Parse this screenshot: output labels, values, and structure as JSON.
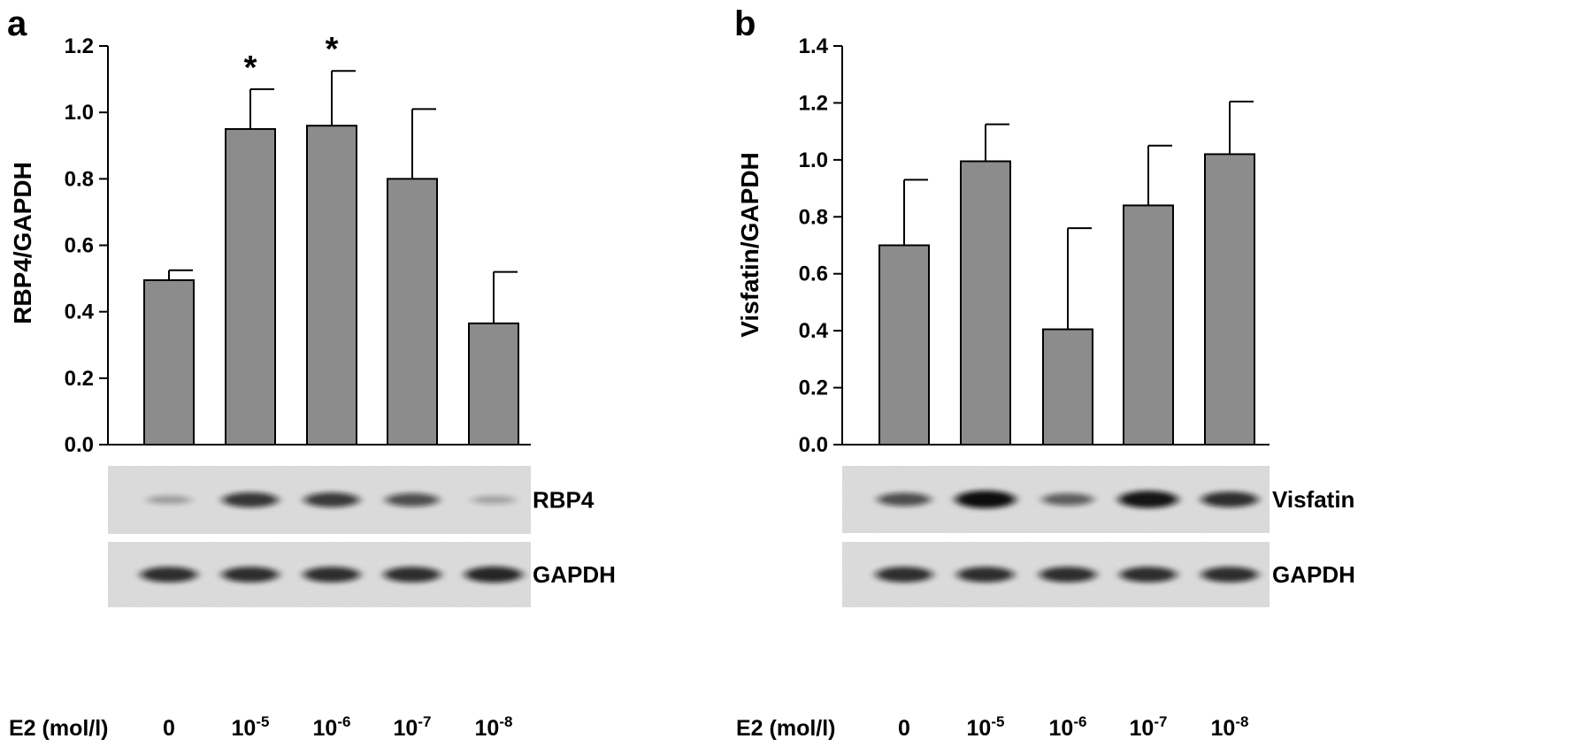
{
  "chart_data": [
    {
      "type": "bar",
      "panel": "a",
      "ylabel": "RBP4/GAPDH",
      "ylim": [
        0,
        1.2
      ],
      "yticks": [
        "0.0",
        "0.2",
        "0.4",
        "0.6",
        "0.8",
        "1.0",
        "1.2"
      ],
      "categories": [
        "0",
        "10-5",
        "10-6",
        "10-7",
        "10-8"
      ],
      "values": [
        0.495,
        0.95,
        0.96,
        0.8,
        0.365
      ],
      "errors": [
        0.03,
        0.12,
        0.165,
        0.21,
        0.155
      ],
      "significance": [
        "",
        "*",
        "*",
        "",
        ""
      ],
      "bar_color": "#8c8c8c",
      "grid": false,
      "blots": [
        {
          "label": "RBP4",
          "intensities": [
            0.12,
            0.75,
            0.72,
            0.6,
            0.1
          ]
        },
        {
          "label": "GAPDH",
          "intensities": [
            0.8,
            0.8,
            0.8,
            0.8,
            0.85
          ]
        }
      ]
    },
    {
      "type": "bar",
      "panel": "b",
      "ylabel": "Visfatin/GAPDH",
      "ylim": [
        0,
        1.4
      ],
      "yticks": [
        "0.0",
        "0.2",
        "0.4",
        "0.6",
        "0.8",
        "1.0",
        "1.2",
        "1.4"
      ],
      "categories": [
        "0",
        "10-5",
        "10-6",
        "10-7",
        "10-8"
      ],
      "values": [
        0.7,
        0.995,
        0.405,
        0.84,
        1.02
      ],
      "errors": [
        0.23,
        0.13,
        0.355,
        0.21,
        0.185
      ],
      "significance": [
        "",
        "",
        "",
        "",
        ""
      ],
      "bar_color": "#8c8c8c",
      "grid": false,
      "blots": [
        {
          "label": "Visfatin",
          "intensities": [
            0.6,
            1.0,
            0.5,
            0.95,
            0.8
          ]
        },
        {
          "label": "GAPDH",
          "intensities": [
            0.8,
            0.8,
            0.8,
            0.8,
            0.8
          ]
        }
      ]
    }
  ],
  "condition_axis": {
    "label": "E2 (mol/l)",
    "values": [
      {
        "base": "0",
        "exp": ""
      },
      {
        "base": "10",
        "exp": "-5"
      },
      {
        "base": "10",
        "exp": "-6"
      },
      {
        "base": "10",
        "exp": "-7"
      },
      {
        "base": "10",
        "exp": "-8"
      }
    ]
  }
}
